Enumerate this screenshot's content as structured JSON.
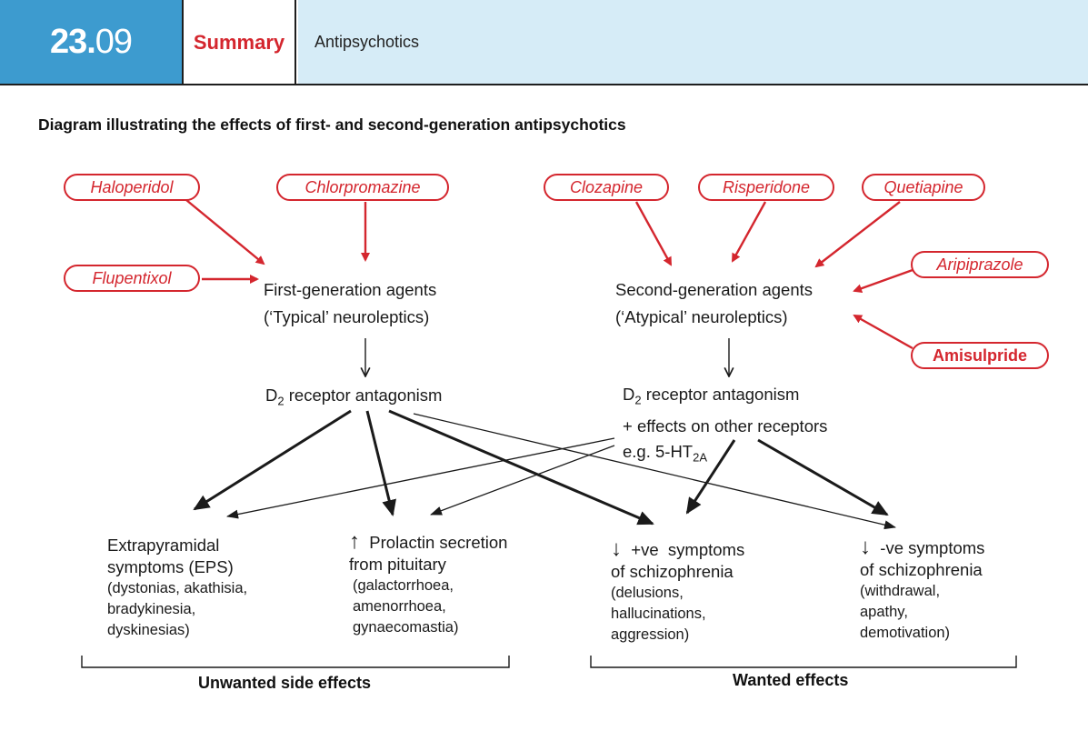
{
  "header": {
    "number_major": "23.",
    "number_minor": "09",
    "section": "Summary",
    "topic": "Antipsychotics"
  },
  "title": "Diagram illustrating the effects of first- and second-generation antipsychotics",
  "drugs": {
    "haloperidol": "Haloperidol",
    "chlorpromazine": "Chlorpromazine",
    "flupentixol": "Flupentixol",
    "clozapine": "Clozapine",
    "risperidone": "Risperidone",
    "quetiapine": "Quetiapine",
    "aripiprazole": "Aripiprazole",
    "amisulpride": "Amisulpride"
  },
  "first_gen": {
    "line1": "First-generation agents",
    "line2": "(‘Typical’ neuroleptics)",
    "mechanism_prefix": "D",
    "mechanism_sub": "2",
    "mechanism_suffix": " receptor antagonism"
  },
  "second_gen": {
    "line1": "Second-generation agents",
    "line2": "(‘Atypical’ neuroleptics)",
    "mechanism_prefix": "D",
    "mechanism_sub": "2",
    "mechanism_suffix": " receptor antagonism",
    "mechanism_line2": "+ effects on other receptors",
    "mechanism_line3_prefix": "e.g. 5-HT",
    "mechanism_line3_sub": "2A"
  },
  "outcomes": {
    "eps": {
      "line1": "Extrapyramidal",
      "line2": "symptoms (EPS)",
      "d1": "(dystonias, akathisia,",
      "d2": "bradykinesia,",
      "d3": "dyskinesias)"
    },
    "prolactin": {
      "arrow": "↑",
      "line1": "Prolactin secretion",
      "line2": "from pituitary",
      "d1": "(galactorrhoea,",
      "d2": "amenorrhoea,",
      "d3": "gynaecomastia)"
    },
    "positive": {
      "arrow": "↓",
      "line1": "+ve  symptoms",
      "line2": "of schizophrenia",
      "d1": "(delusions,",
      "d2": "hallucinations,",
      "d3": "aggression)"
    },
    "negative": {
      "arrow": "↓",
      "line1": "-ve symptoms",
      "line2": "of schizophrenia",
      "d1": "(withdrawal,",
      "d2": "apathy,",
      "d3": "demotivation)"
    }
  },
  "groups": {
    "unwanted": "Unwanted side effects",
    "wanted": "Wanted effects"
  },
  "colors": {
    "header_blue": "#3d9bcf",
    "header_light": "#d6ecf7",
    "drug_red": "#d4262e",
    "arrow_dark": "#1a1a1a"
  }
}
